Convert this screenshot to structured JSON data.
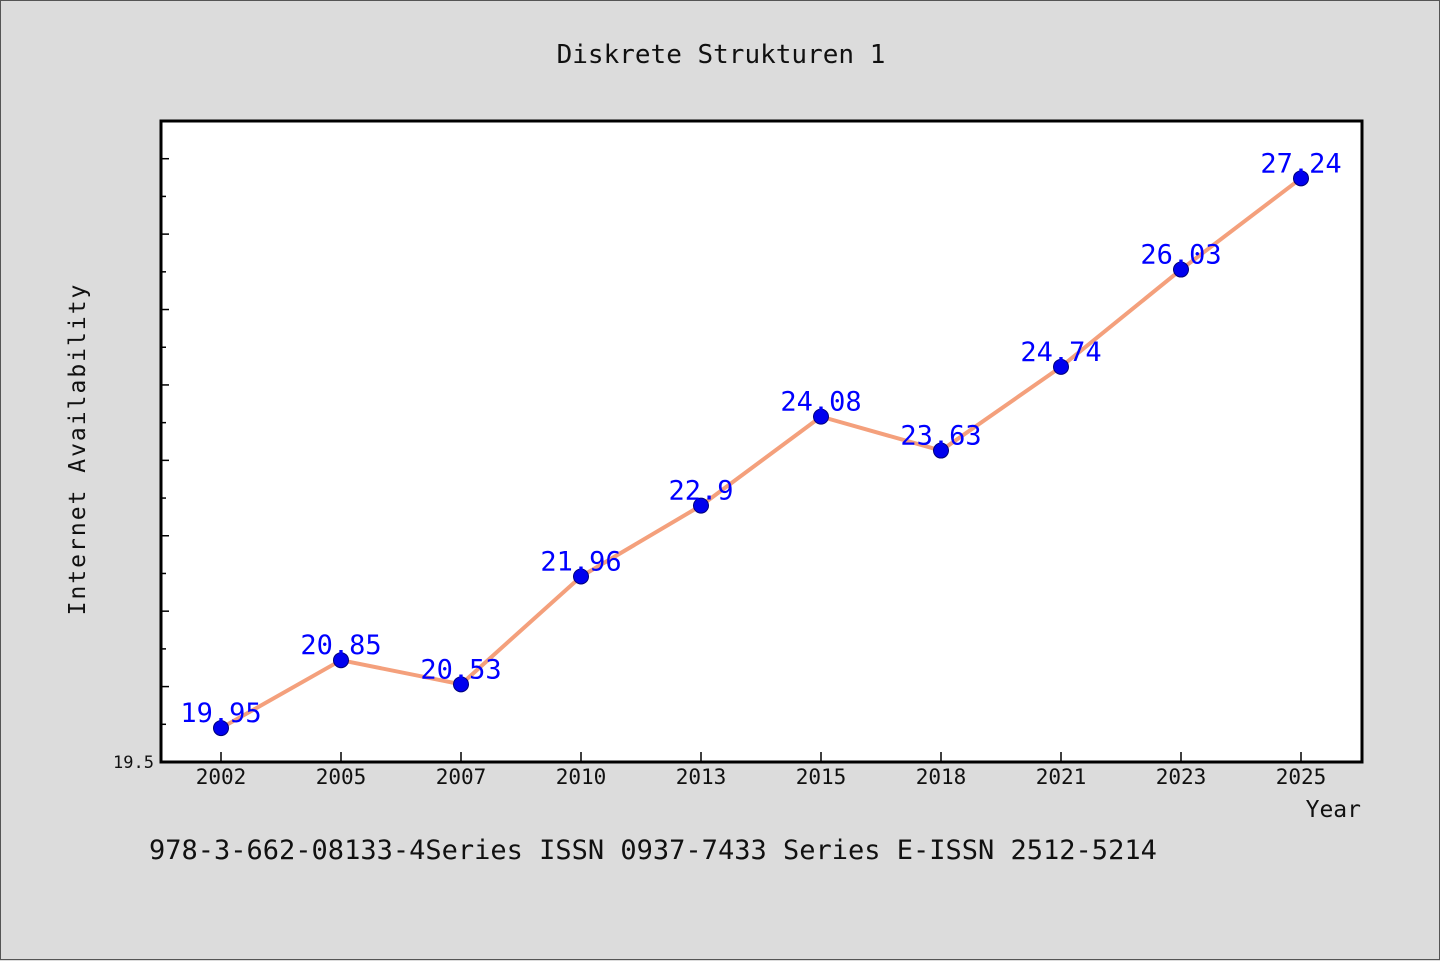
{
  "chart_data": {
    "type": "line",
    "title": "Diskrete Strukturen 1",
    "xlabel": "Year",
    "ylabel": "Internet Availability",
    "categories": [
      "2002",
      "2005",
      "2007",
      "2010",
      "2013",
      "2015",
      "2018",
      "2021",
      "2023",
      "2025"
    ],
    "series": [
      {
        "values": [
          19.95,
          20.85,
          20.53,
          21.96,
          22.9,
          24.08,
          23.63,
          24.74,
          26.03,
          27.24
        ]
      }
    ],
    "ylim": [
      19.5,
      28.0
    ],
    "y_tick_labels": [
      "19.5"
    ],
    "grid": false,
    "colors": {
      "line": "#f4a07c",
      "marker": "#0000ee",
      "data_label": "#0000ff",
      "plot_bg": "#ffffff",
      "page_bg": "#dcdcdc"
    }
  },
  "caption": "978-3-662-08133-4Series ISSN 0937-7433 Series E-ISSN 2512-5214"
}
